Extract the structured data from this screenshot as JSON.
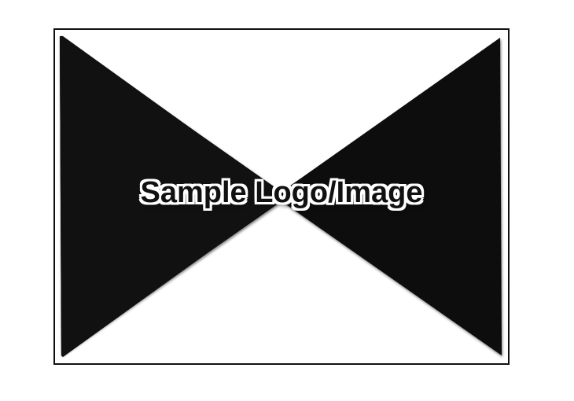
{
  "placeholder": {
    "label": "Sample Logo/Image",
    "icon": "image-placeholder-cross-icon",
    "colors": {
      "border": "#111111",
      "background": "#ffffff",
      "text": "#111111"
    }
  }
}
